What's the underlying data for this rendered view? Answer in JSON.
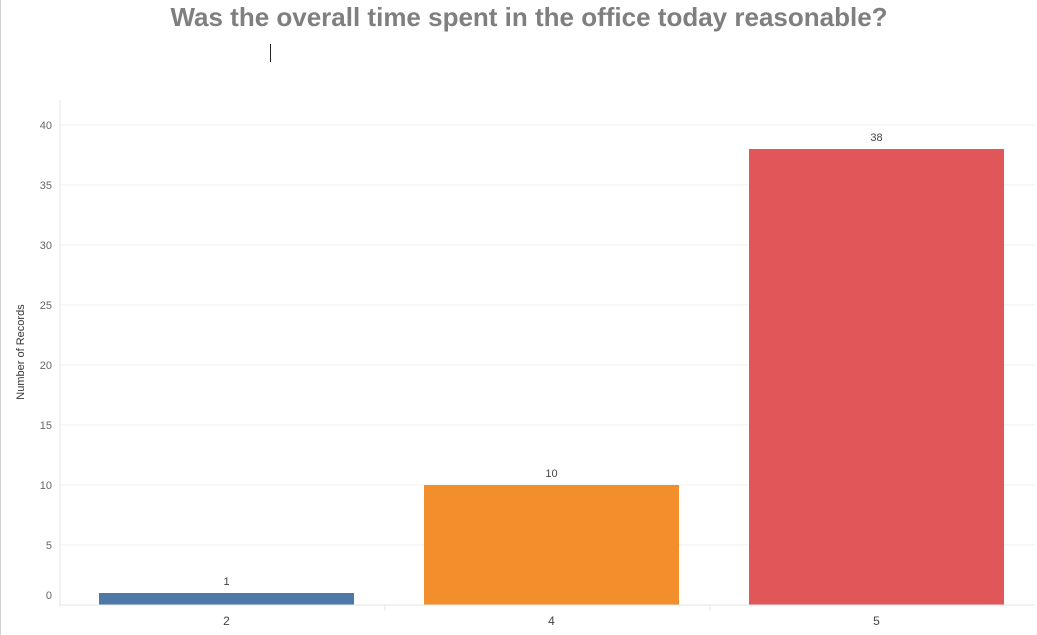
{
  "chart_data": {
    "type": "bar",
    "title": "Was the overall time spent in the office today reasonable?",
    "xlabel": "",
    "ylabel": "Number of Records",
    "categories": [
      "2",
      "4",
      "5"
    ],
    "values": [
      1,
      10,
      38
    ],
    "ylim": [
      0,
      40
    ],
    "yticks": [
      0,
      5,
      10,
      15,
      20,
      25,
      30,
      35,
      40
    ],
    "bar_colors": [
      "#4e79a7",
      "#f28e2b",
      "#e15759"
    ],
    "grid": true,
    "data_labels": true
  }
}
